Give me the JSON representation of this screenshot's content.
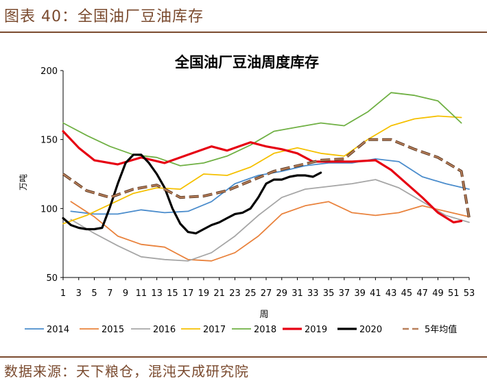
{
  "figure": {
    "title": "图表 40：全国油厂豆油库存",
    "source": "数据来源：天下粮仓，混沌天成研究院"
  },
  "chart_data": {
    "type": "line",
    "title": "全国油厂豆油周度库存",
    "xlabel": "周",
    "ylabel": "万吨",
    "ylim": [
      50,
      200
    ],
    "yticks": [
      50,
      100,
      150,
      200
    ],
    "xlim": [
      1,
      53
    ],
    "xtick_labels": [
      "1",
      "3",
      "5",
      "7",
      "9",
      "11",
      "13",
      "15",
      "17",
      "19",
      "21",
      "23",
      "25",
      "27",
      "29",
      "31",
      "33",
      "35",
      "37",
      "39",
      "41",
      "43",
      "45",
      "47",
      "49",
      "51",
      "53"
    ],
    "grid": false,
    "legend_position": "bottom",
    "series": [
      {
        "name": "2014",
        "color": "#4a8ccc",
        "width": 1.8,
        "dashed": false,
        "x": [
          2,
          5,
          8,
          11,
          14,
          17,
          20,
          23,
          26,
          29,
          32,
          35,
          38,
          41,
          44,
          47,
          50,
          53
        ],
        "y": [
          98,
          96,
          96,
          99,
          97,
          98,
          105,
          118,
          124,
          127,
          131,
          133,
          133,
          136,
          134,
          123,
          118,
          114
        ]
      },
      {
        "name": "2015",
        "color": "#e9823c",
        "width": 1.8,
        "dashed": false,
        "x": [
          2,
          5,
          8,
          11,
          14,
          17,
          20,
          23,
          26,
          29,
          32,
          35,
          38,
          41,
          44,
          47,
          50,
          53
        ],
        "y": [
          105,
          94,
          80,
          74,
          72,
          63,
          62,
          68,
          80,
          96,
          102,
          105,
          97,
          95,
          97,
          102,
          98,
          94
        ]
      },
      {
        "name": "2016",
        "color": "#a6a6a6",
        "width": 1.8,
        "dashed": false,
        "x": [
          2,
          5,
          8,
          11,
          14,
          17,
          20,
          23,
          26,
          29,
          32,
          35,
          38,
          41,
          44,
          47,
          50,
          53
        ],
        "y": [
          92,
          82,
          73,
          65,
          63,
          62,
          68,
          80,
          95,
          108,
          114,
          116,
          118,
          121,
          115,
          105,
          95,
          90
        ]
      },
      {
        "name": "2017",
        "color": "#f5c000",
        "width": 1.8,
        "dashed": false,
        "x": [
          1,
          4,
          7,
          10,
          13,
          16,
          19,
          22,
          25,
          28,
          31,
          34,
          37,
          40,
          43,
          46,
          49,
          52
        ],
        "y": [
          89,
          95,
          103,
          111,
          115,
          114,
          125,
          124,
          130,
          140,
          144,
          140,
          138,
          150,
          160,
          165,
          167,
          166
        ]
      },
      {
        "name": "2018",
        "color": "#6fb043",
        "width": 1.8,
        "dashed": false,
        "x": [
          1,
          4,
          7,
          10,
          13,
          16,
          19,
          22,
          25,
          28,
          31,
          34,
          37,
          40,
          43,
          46,
          49,
          52
        ],
        "y": [
          162,
          153,
          145,
          139,
          137,
          131,
          133,
          138,
          146,
          156,
          159,
          162,
          160,
          170,
          184,
          182,
          178,
          162
        ]
      },
      {
        "name": "2019",
        "color": "#e60012",
        "width": 3.2,
        "dashed": false,
        "x": [
          1,
          3,
          5,
          8,
          11,
          14,
          17,
          20,
          22,
          25,
          27,
          29,
          31,
          33,
          35,
          38,
          41,
          43,
          45,
          47,
          49,
          51,
          52
        ],
        "y": [
          156,
          144,
          135,
          132,
          137,
          133,
          139,
          145,
          142,
          148,
          145,
          143,
          140,
          134,
          134,
          134,
          135,
          128,
          118,
          108,
          97,
          90,
          91
        ]
      },
      {
        "name": "2020",
        "color": "#000000",
        "width": 3.2,
        "dashed": false,
        "x": [
          1,
          2,
          3,
          4,
          5,
          6,
          7,
          8,
          9,
          10,
          11,
          12,
          13,
          14,
          15,
          16,
          17,
          18,
          19,
          20,
          21,
          22,
          23,
          24,
          25,
          26,
          27,
          28,
          29,
          30,
          31,
          32,
          33,
          34
        ],
        "y": [
          93,
          88,
          86,
          85,
          85,
          86,
          101,
          118,
          133,
          139,
          139,
          133,
          125,
          115,
          100,
          89,
          83,
          82,
          85,
          88,
          90,
          93,
          96,
          97,
          100,
          108,
          118,
          121,
          121,
          123,
          124,
          124,
          123,
          126
        ]
      },
      {
        "name": "5年均值",
        "color": "#b87f5a",
        "width": 2.6,
        "dashed": true,
        "x": [
          1,
          4,
          7,
          10,
          13,
          16,
          19,
          22,
          25,
          28,
          31,
          34,
          37,
          40,
          43,
          46,
          49,
          52,
          53
        ],
        "y": [
          125,
          113,
          108,
          114,
          117,
          108,
          109,
          113,
          120,
          127,
          131,
          135,
          136,
          150,
          150,
          143,
          137,
          127,
          93
        ]
      }
    ]
  }
}
